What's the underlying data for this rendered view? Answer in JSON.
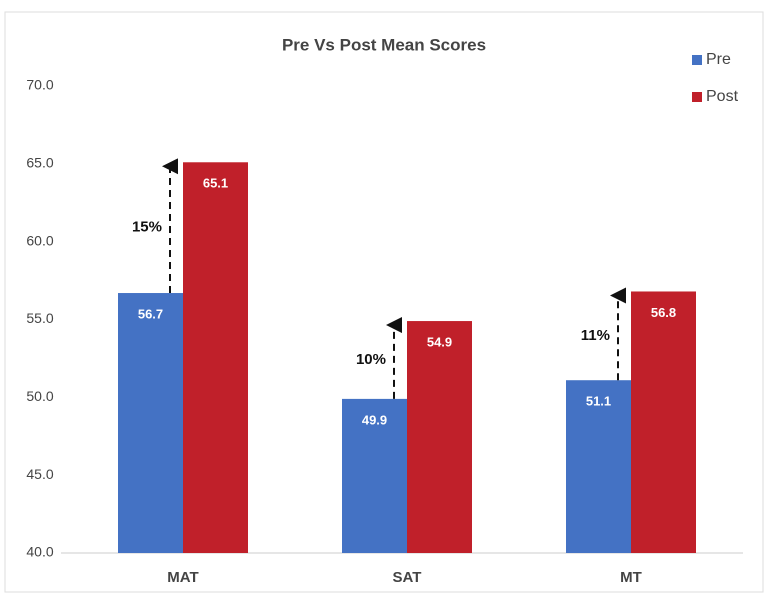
{
  "chart_data": {
    "type": "bar",
    "title": "Pre Vs Post Mean Scores",
    "categories": [
      "MAT",
      "SAT",
      "MT"
    ],
    "series": [
      {
        "name": "Pre",
        "color": "#4472c4",
        "values": [
          56.7,
          49.9,
          51.1
        ]
      },
      {
        "name": "Post",
        "color": "#c0202a",
        "values": [
          65.1,
          54.9,
          56.8
        ]
      }
    ],
    "annotations": [
      "15%",
      "10%",
      "11%"
    ],
    "ylim": [
      40,
      70
    ],
    "yticks": [
      {
        "value": 40,
        "label": "40.0"
      },
      {
        "value": 45,
        "label": "45.0"
      },
      {
        "value": 50,
        "label": "50.0"
      },
      {
        "value": 55,
        "label": "55.0"
      },
      {
        "value": 60,
        "label": "60.0"
      },
      {
        "value": 65,
        "label": "65.0"
      },
      {
        "value": 70,
        "label": "70.0"
      }
    ],
    "grid": false,
    "legend": "top-right"
  }
}
